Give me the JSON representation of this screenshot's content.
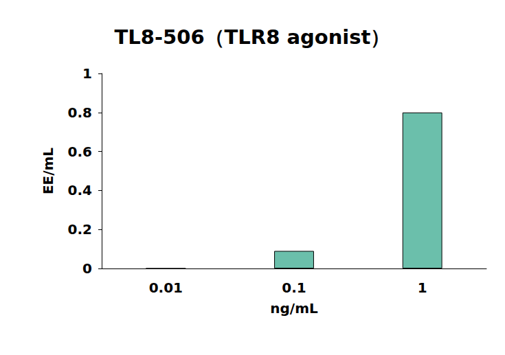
{
  "chart_data": {
    "type": "bar",
    "title": "TL8-506（TLR8 agonist）",
    "x_label": "ng/mL",
    "y_label": "EE/mL",
    "categories": [
      "0.01",
      "0.1",
      "1"
    ],
    "values": [
      0,
      0.09,
      0.8
    ],
    "color": "#6bbfab",
    "ylim": [
      0,
      1
    ],
    "yticks": [
      0,
      0.2,
      0.4,
      0.6,
      0.8,
      1
    ],
    "grid": false
  }
}
